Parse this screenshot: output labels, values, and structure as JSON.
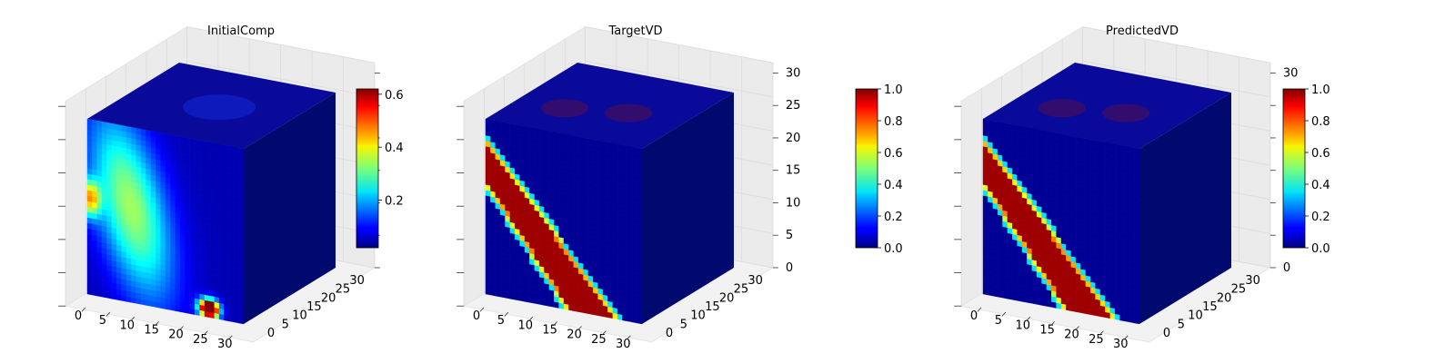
{
  "figure": {
    "background": "#ffffff",
    "colormap": "jet"
  },
  "chart_data": [
    {
      "type": "heatmap",
      "subtype": "3d-voxel-cube",
      "title": "InitialComp",
      "x_ticks": [
        "0",
        "5",
        "10",
        "15",
        "20",
        "25",
        "30"
      ],
      "y_ticks": [
        "0",
        "5",
        "10",
        "15",
        "20",
        "25",
        "30"
      ],
      "z_ticks": [],
      "x_range": [
        0,
        32
      ],
      "y_range": [
        0,
        32
      ],
      "z_range": [
        0,
        32
      ],
      "colorbar": {
        "ticks": [
          "0.2",
          "0.4",
          "0.6"
        ],
        "range": [
          0.02,
          0.62
        ]
      },
      "pattern": "diffuse",
      "peak_value": 0.6
    },
    {
      "type": "heatmap",
      "subtype": "3d-voxel-cube",
      "title": "TargetVD",
      "x_ticks": [
        "0",
        "5",
        "10",
        "15",
        "20",
        "25",
        "30"
      ],
      "y_ticks": [
        "0",
        "5",
        "10",
        "15",
        "20",
        "25",
        "30"
      ],
      "z_ticks": [
        "0",
        "5",
        "10",
        "15",
        "20",
        "25",
        "30"
      ],
      "x_range": [
        0,
        32
      ],
      "y_range": [
        0,
        32
      ],
      "z_range": [
        0,
        32
      ],
      "colorbar": {
        "ticks": [
          "0.0",
          "0.2",
          "0.4",
          "0.6",
          "0.8",
          "1.0"
        ],
        "range": [
          0,
          1
        ]
      },
      "pattern": "band",
      "peak_value": 1.0
    },
    {
      "type": "heatmap",
      "subtype": "3d-voxel-cube",
      "title": "PredictedVD",
      "x_ticks": [
        "0",
        "5",
        "10",
        "15",
        "20",
        "25",
        "30"
      ],
      "y_ticks": [
        "0",
        "5",
        "10",
        "15",
        "20",
        "25",
        "30"
      ],
      "z_ticks": [
        "0",
        "5",
        "10",
        "15",
        "20",
        "25",
        "30"
      ],
      "x_range": [
        0,
        32
      ],
      "y_range": [
        0,
        32
      ],
      "z_range": [
        0,
        32
      ],
      "colorbar": {
        "ticks": [
          "0.0",
          "0.2",
          "0.4",
          "0.6",
          "0.8",
          "1.0"
        ],
        "range": [
          0,
          1
        ]
      },
      "pattern": "band",
      "peak_value": 1.0
    }
  ]
}
